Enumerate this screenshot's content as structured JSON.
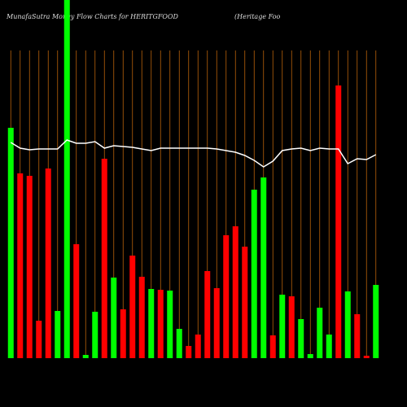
{
  "chart_data": {
    "type": "bar",
    "title": "MunafaSutra  Money Flow  Charts for HERITGFOOD",
    "subtitle": "(Heritage   Foo",
    "categories": [
      null,
      null,
      null,
      null,
      null,
      null,
      null,
      null,
      null,
      null,
      null,
      null,
      null,
      null,
      null,
      null,
      null,
      null,
      null,
      null,
      null,
      null,
      null,
      null,
      null,
      null,
      null,
      null,
      null,
      null,
      null,
      null,
      null,
      null,
      null,
      null,
      null,
      null,
      null,
      null
    ],
    "values": [
      283,
      227,
      224,
      46,
      233,
      58,
      440,
      140,
      4,
      57,
      245,
      99,
      60,
      126,
      100,
      85,
      84,
      83,
      36,
      15,
      29,
      107,
      86,
      151,
      162,
      137,
      207,
      222,
      28,
      78,
      76,
      48,
      5,
      62,
      29,
      335,
      82,
      54,
      3,
      90
    ],
    "colors": [
      "#00ff00",
      "#ff0000",
      "#ff0000",
      "#ff0000",
      "#ff0000",
      "#00ff00",
      "#00ff00",
      "#ff0000",
      "#00ff00",
      "#00ff00",
      "#ff0000",
      "#00ff00",
      "#ff0000",
      "#ff0000",
      "#ff0000",
      "#00ff00",
      "#ff0000",
      "#00ff00",
      "#00ff00",
      "#ff0000",
      "#ff0000",
      "#ff0000",
      "#ff0000",
      "#ff0000",
      "#ff0000",
      "#ff0000",
      "#00ff00",
      "#00ff00",
      "#ff0000",
      "#00ff00",
      "#ff0000",
      "#00ff00",
      "#00ff00",
      "#00ff00",
      "#00ff00",
      "#ff0000",
      "#00ff00",
      "#ff0000",
      "#ff0000",
      "#00ff00"
    ],
    "line": {
      "color": "#ffffff",
      "values": [
        265,
        258,
        256,
        257,
        257,
        257,
        268,
        264,
        264,
        266,
        258,
        261,
        260,
        259,
        257,
        255,
        258,
        258,
        258,
        258,
        258,
        258,
        257,
        255,
        253,
        249,
        243,
        235,
        242,
        255,
        257,
        258,
        255,
        258,
        257,
        257,
        239,
        245,
        244,
        250
      ]
    },
    "ylim": [
      0,
      440
    ],
    "grid_color": "#b8620a"
  }
}
